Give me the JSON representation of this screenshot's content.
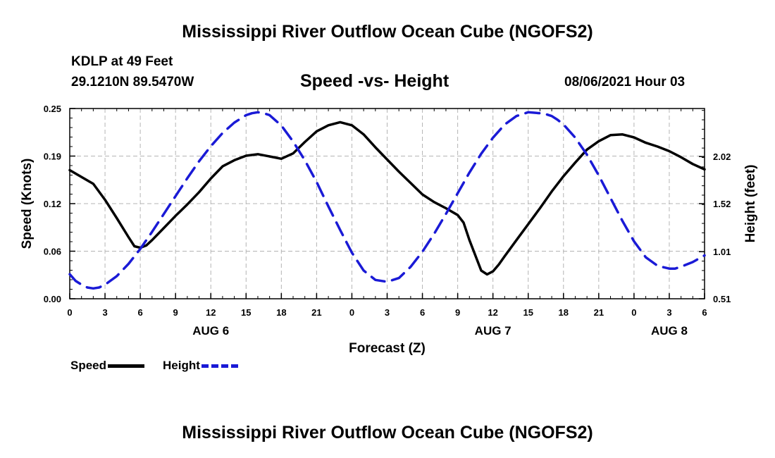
{
  "title": "Mississippi River Outflow Ocean Cube (NGOFS2)",
  "station": {
    "name": "KDLP at 49 Feet",
    "coords": "29.1210N  89.5470W",
    "datetime": "08/06/2021 Hour 03"
  },
  "legend": {
    "speed_label": "Speed",
    "height_label": "Height"
  },
  "colors": {
    "speed": "#000000",
    "height": "#1a1ad6",
    "grid": "#b4b4b4"
  },
  "chart_data": {
    "type": "line",
    "title": "Speed -vs- Height",
    "xlabel": "Forecast (Z)",
    "ylabel": "Speed (Knots)",
    "y2label": "Height (feet)",
    "x_unit": "hours since 08/06 00Z",
    "xlim": [
      0,
      54
    ],
    "ylim": [
      0,
      0.25
    ],
    "y2lim": [
      0.51,
      2.53
    ],
    "x_ticks": [
      0,
      3,
      6,
      9,
      12,
      15,
      18,
      21,
      24,
      27,
      30,
      33,
      36,
      39,
      42,
      45,
      48,
      51,
      54
    ],
    "x_tick_labels": [
      "0",
      "3",
      "6",
      "9",
      "12",
      "15",
      "18",
      "21",
      "0",
      "3",
      "6",
      "9",
      "12",
      "15",
      "18",
      "21",
      "0",
      "3",
      "6"
    ],
    "day_labels": [
      {
        "x": 12,
        "label": "AUG 6"
      },
      {
        "x": 36,
        "label": "AUG 7"
      },
      {
        "x": 51,
        "label": "AUG 8"
      }
    ],
    "y_ticks": [
      0.0,
      0.0625,
      0.125,
      0.1875,
      0.25
    ],
    "y_tick_labels": [
      "0.00",
      "0.06",
      "0.12",
      "0.19",
      "0.25"
    ],
    "y2_ticks": [
      0.51,
      1.01,
      1.52,
      2.02
    ],
    "y2_tick_labels": [
      "0.51",
      "1.01",
      "1.52",
      "2.02"
    ],
    "series": [
      {
        "name": "Speed",
        "axis": "left",
        "style": "solid",
        "x": [
          0,
          2,
          3,
          4,
          5,
          5.5,
          6,
          6.5,
          7,
          8,
          9,
          10,
          11,
          12,
          13,
          14,
          15,
          16,
          17,
          18,
          19,
          20,
          21,
          22,
          23,
          24,
          25,
          26,
          27,
          28,
          29,
          30,
          31,
          32,
          33,
          33.5,
          34,
          35,
          35.5,
          36,
          36.5,
          37,
          38,
          39,
          40,
          41,
          42,
          43,
          44,
          45,
          46,
          47,
          48,
          49,
          50,
          51,
          52,
          53,
          54
        ],
        "values": [
          0.169,
          0.151,
          0.13,
          0.106,
          0.081,
          0.069,
          0.067,
          0.07,
          0.077,
          0.093,
          0.109,
          0.124,
          0.14,
          0.158,
          0.174,
          0.182,
          0.188,
          0.19,
          0.187,
          0.184,
          0.191,
          0.206,
          0.22,
          0.228,
          0.232,
          0.228,
          0.216,
          0.199,
          0.183,
          0.167,
          0.152,
          0.137,
          0.127,
          0.119,
          0.11,
          0.1,
          0.077,
          0.037,
          0.032,
          0.036,
          0.045,
          0.056,
          0.077,
          0.098,
          0.119,
          0.141,
          0.161,
          0.179,
          0.196,
          0.207,
          0.215,
          0.216,
          0.212,
          0.205,
          0.2,
          0.194,
          0.186,
          0.177,
          0.17
        ]
      },
      {
        "name": "Height",
        "axis": "right",
        "style": "dashed",
        "x": [
          0,
          0.5,
          1,
          1.5,
          2,
          2.5,
          3,
          4,
          5,
          6,
          7,
          8,
          9,
          10,
          11,
          12,
          13,
          14,
          15,
          15.5,
          16,
          16.5,
          17,
          18,
          19,
          20,
          21,
          22,
          23,
          24,
          25,
          26,
          27,
          28,
          29,
          30,
          31,
          32,
          33,
          34,
          35,
          36,
          37,
          38,
          39,
          40,
          40.5,
          41,
          41.5,
          42,
          43,
          44,
          45,
          46,
          47,
          48,
          49,
          50,
          51,
          51.5,
          52,
          53,
          54
        ],
        "values": [
          0.77,
          0.7,
          0.66,
          0.63,
          0.62,
          0.63,
          0.66,
          0.75,
          0.88,
          1.04,
          1.22,
          1.41,
          1.6,
          1.79,
          1.97,
          2.13,
          2.27,
          2.38,
          2.46,
          2.48,
          2.49,
          2.48,
          2.46,
          2.35,
          2.18,
          1.98,
          1.75,
          1.49,
          1.24,
          1.0,
          0.81,
          0.71,
          0.69,
          0.73,
          0.85,
          1.01,
          1.2,
          1.41,
          1.63,
          1.85,
          2.05,
          2.22,
          2.36,
          2.45,
          2.49,
          2.48,
          2.47,
          2.45,
          2.41,
          2.36,
          2.22,
          2.04,
          1.82,
          1.58,
          1.34,
          1.12,
          0.95,
          0.86,
          0.83,
          0.83,
          0.85,
          0.9,
          0.97
        ]
      }
    ]
  }
}
